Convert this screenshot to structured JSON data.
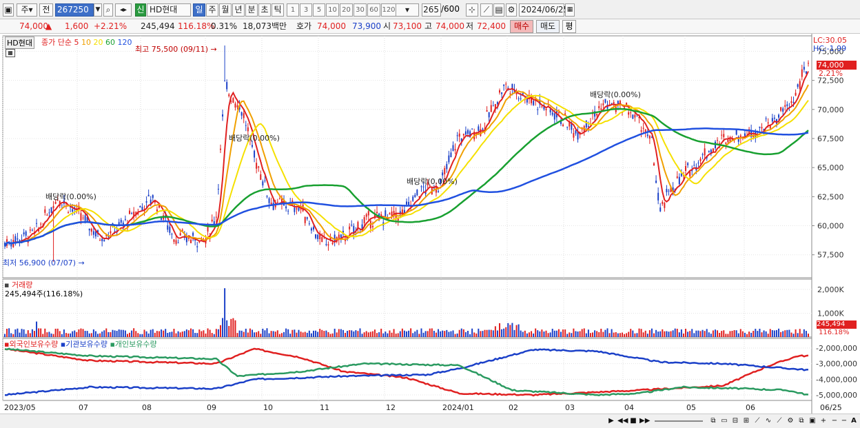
{
  "toolbar": {
    "period_main": "주",
    "prev": "전",
    "code": "267250",
    "stock_badge": "신",
    "stock_name": "HD현대",
    "periods": [
      "일",
      "주",
      "월",
      "년",
      "분",
      "초",
      "틱"
    ],
    "active_period": "일",
    "intervals": [
      "1",
      "3",
      "5",
      "10",
      "20",
      "30",
      "60",
      "120"
    ],
    "count": "265",
    "count_max": "/600",
    "date": "2024/06/25"
  },
  "info": {
    "price": "74,000",
    "arrow": "▲",
    "change": "1,600",
    "change_pct": "+2.21%",
    "volume": "245,494",
    "vol_ratio": "116.18%",
    "turnover": "0.31%",
    "amount": "18,073백만",
    "quote_label": "호가",
    "ask": "74,000",
    "bid": "73,900",
    "open_label": "시",
    "open": "73,100",
    "high_label": "고",
    "high": "74,000",
    "low_label": "저",
    "low": "72,400",
    "buy_btn": "매수",
    "sell_btn": "매도",
    "eval_btn": "평"
  },
  "price_panel": {
    "stock_tag": "HD현대",
    "ma_title": "종가 단순",
    "ma_periods": [
      "5",
      "10",
      "20",
      "60",
      "120"
    ],
    "ma_colors": [
      "#e02020",
      "#f0a000",
      "#f5e000",
      "#18a030",
      "#2050e0"
    ],
    "max_label": "최고 75,500 (09/11)",
    "min_label": "최저 56,900 (07/07)",
    "dividend_labels": [
      "배당락(0.00%)",
      "배당락(0.00%)",
      "배당락(0.00%)",
      "배당락(0.00%)"
    ],
    "lc": "LC:30.05",
    "hc": "HC:-1.99",
    "price_axis": [
      "75,000",
      "72,500",
      "70,000",
      "67,500",
      "65,000",
      "62,500",
      "60,000",
      "57,500"
    ],
    "current_price": "74,000",
    "current_pct": "2.21%"
  },
  "volume_panel": {
    "title": "거래량",
    "value_label": "245,494주(116.18%)",
    "axis": [
      "2,000K",
      "1,000K"
    ],
    "current": "245,494",
    "current_pct": "116.18%"
  },
  "holding_panel": {
    "legend": [
      "외국인보유수량",
      "기관보유수량",
      "개인보유수량"
    ],
    "legend_colors": [
      "#e02020",
      "#1b40c8",
      "#2a9a60"
    ],
    "axis": [
      "-2,000,000",
      "-3,000,000",
      "-4,000,000",
      "-5,000,000"
    ]
  },
  "x_axis": [
    "2023/05",
    "07",
    "08",
    "09",
    "10",
    "11",
    "12",
    "2024/01",
    "02",
    "03",
    "04",
    "05",
    "06",
    "06/25"
  ]
}
